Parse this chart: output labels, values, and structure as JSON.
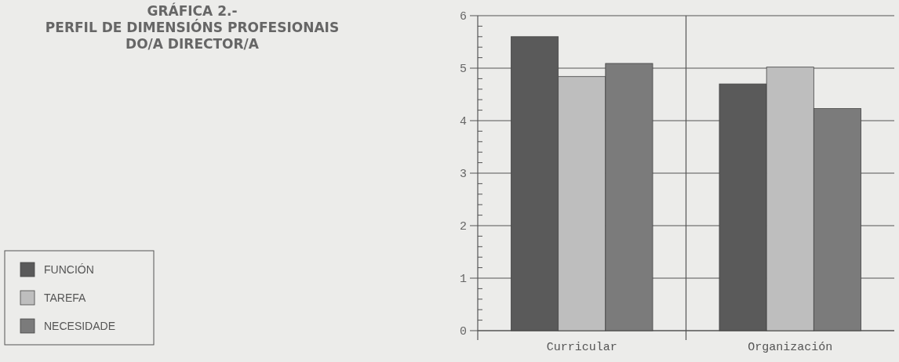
{
  "chart_data": {
    "type": "bar",
    "title": "GRÁFICA 2.-\nPERFIL DE DIMENSIÓNS PROFESIONAIS\nDO/A DIRECTOR/A",
    "categories": [
      "Curricular",
      "Organización"
    ],
    "series": [
      {
        "name": "FUNCIÓN",
        "color": "#5a5a5a",
        "values": [
          5.6,
          4.7
        ]
      },
      {
        "name": "TAREFA",
        "color": "#bebebe",
        "values": [
          4.84,
          5.02
        ]
      },
      {
        "name": "NECESIDADE",
        "color": "#7b7b7b",
        "values": [
          5.09,
          4.23
        ]
      }
    ],
    "ylim": [
      0,
      6
    ],
    "yticks": [
      0,
      {
        "value": 0.2,
        "label": null
      },
      {
        "value": 0.4,
        "label": null
      },
      {
        "value": 0.6,
        "label": null
      },
      {
        "value": 0.8,
        "label": null
      },
      1,
      {
        "value": 1.2,
        "label": null
      },
      {
        "value": 1.4,
        "label": null
      },
      {
        "value": 1.6,
        "label": null
      },
      {
        "value": 1.8,
        "label": null
      },
      2,
      {
        "value": 2.2,
        "label": null
      },
      {
        "value": 2.4,
        "label": null
      },
      {
        "value": 2.6,
        "label": null
      },
      {
        "value": 2.8,
        "label": null
      },
      3,
      {
        "value": 3.2,
        "label": null
      },
      {
        "value": 3.4,
        "label": null
      },
      {
        "value": 3.6,
        "label": null
      },
      {
        "value": 3.8,
        "label": null
      },
      4,
      {
        "value": 4.2,
        "label": null
      },
      {
        "value": 4.4,
        "label": null
      },
      {
        "value": 4.6,
        "label": null
      },
      {
        "value": 4.8,
        "label": null
      },
      5,
      {
        "value": 5.2,
        "label": null
      },
      {
        "value": 5.4,
        "label": null
      },
      {
        "value": 5.6,
        "label": null
      },
      {
        "value": 5.8,
        "label": null
      },
      6
    ],
    "grid": true,
    "legend": "left"
  }
}
